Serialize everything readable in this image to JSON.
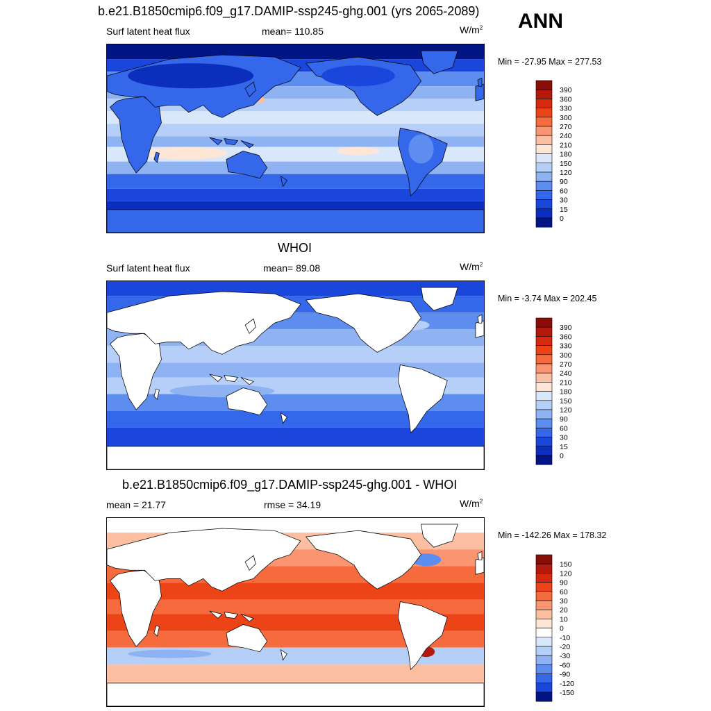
{
  "season": "ANN",
  "panels": [
    {
      "title": "b.e21.B1850cmip6.f09_g17.DAMIP-ssp245-ghg.001 (yrs 2065-2089)",
      "left_label": "Surf latent heat flux",
      "center_label": "mean= 110.85",
      "units": "W/m",
      "units_sup": "2",
      "minmax": "Min = -27.95 Max = 277.53",
      "colorbar": {
        "labels": [
          "390",
          "360",
          "330",
          "300",
          "270",
          "240",
          "210",
          "180",
          "150",
          "120",
          "90",
          "60",
          "30",
          "15",
          "0"
        ],
        "colors": [
          "#8a0e08",
          "#b5180c",
          "#d52a0f",
          "#ec4417",
          "#f66b3d",
          "#fb9571",
          "#fcbfa1",
          "#fde6d6",
          "#d9e7fb",
          "#b5cff8",
          "#8fb2f3",
          "#5e8df0",
          "#3467ea",
          "#1a46dc",
          "#0b2ebd",
          "#021585"
        ]
      },
      "field": "model"
    },
    {
      "title": "WHOI",
      "left_label": "Surf latent heat flux",
      "center_label": "mean=  89.08",
      "units": "W/m",
      "units_sup": "2",
      "minmax": "Min =  -3.74 Max = 202.45",
      "colorbar": {
        "labels": [
          "390",
          "360",
          "330",
          "300",
          "270",
          "240",
          "210",
          "180",
          "150",
          "120",
          "90",
          "60",
          "30",
          "15",
          "0"
        ],
        "colors": [
          "#8a0e08",
          "#b5180c",
          "#d52a0f",
          "#ec4417",
          "#f66b3d",
          "#fb9571",
          "#fcbfa1",
          "#fde6d6",
          "#d9e7fb",
          "#b5cff8",
          "#8fb2f3",
          "#5e8df0",
          "#3467ea",
          "#1a46dc",
          "#0b2ebd",
          "#021585"
        ]
      },
      "field": "obs"
    },
    {
      "title": "b.e21.B1850cmip6.f09_g17.DAMIP-ssp245-ghg.001 - WHOI",
      "left_label": "mean =  21.77",
      "center_label": "rmse =  34.19",
      "units": "W/m",
      "units_sup": "2",
      "minmax": "Min = -142.26 Max = 178.32",
      "colorbar": {
        "labels": [
          "150",
          "120",
          "90",
          "60",
          "30",
          "20",
          "10",
          "0",
          "-10",
          "-20",
          "-30",
          "-60",
          "-90",
          "-120",
          "-150"
        ],
        "colors": [
          "#8a0e08",
          "#b5180c",
          "#d52a0f",
          "#ec4417",
          "#f66b3d",
          "#fb9571",
          "#fcbfa1",
          "#fde6d6",
          "#ffffff",
          "#d9e7fb",
          "#b5cff8",
          "#8fb2f3",
          "#5e8df0",
          "#3467ea",
          "#1a46dc",
          "#021585"
        ]
      },
      "field": "diff"
    }
  ],
  "colors": {
    "land": "#ffffff",
    "coast": "#000000",
    "frame": "#000000"
  }
}
